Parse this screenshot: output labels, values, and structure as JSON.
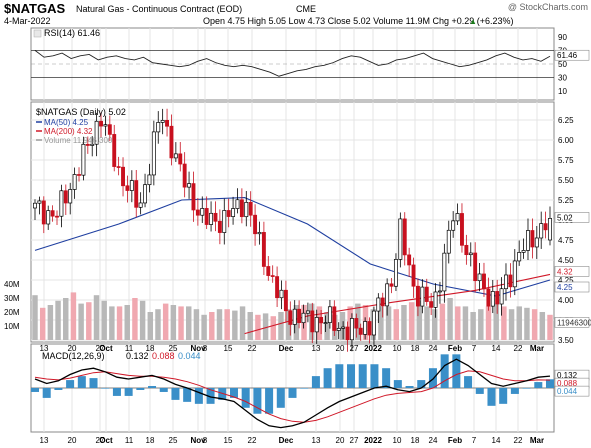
{
  "header": {
    "symbol": "$NATGAS",
    "name": "Natural Gas - Continuous Contract (EOD)",
    "exchange": "CME",
    "watermark": "@ StockCharts.com",
    "date": "4-Mar-2022",
    "quote": "Open 4.75  High 5.05  Low 4.73  Close 5.02  Volume 11.9M  Chg +0.29 (+6.23%)",
    "quote_arrow": "▲"
  },
  "rsi": {
    "label": "RSI(14) 61.46",
    "value_tag": "61.46",
    "levels": [
      70,
      30
    ],
    "ticks": [
      {
        "label": "90",
        "value": 90
      },
      {
        "label": "70",
        "value": 70
      },
      {
        "label": "50",
        "value": 50
      },
      {
        "label": "30",
        "value": 30
      },
      {
        "label": "10",
        "value": 10
      }
    ]
  },
  "price": {
    "title": "$NATGAS (Daily) 5.02",
    "legend": [
      {
        "label": "MA(50) 4.25",
        "color": "#1f3fa0"
      },
      {
        "label": "MA(200) 4.32",
        "color": "#d01828"
      },
      {
        "label": "Volume 11,946,300",
        "color": "#999999"
      }
    ],
    "ticks": [
      "6.25",
      "6.00",
      "5.75",
      "5.50",
      "5.25",
      "5.00",
      "4.75",
      "4.50",
      "4.25",
      "4.00",
      "3.75",
      "3.50"
    ],
    "tags": {
      "close": "5.02",
      "ma200": "4.32",
      "ma50": "4.25",
      "volume": "11946300"
    },
    "volume_ticks": [
      "40M",
      "30M",
      "20M",
      "10M"
    ]
  },
  "macd": {
    "label_prefix": "MACD(12,26,9)",
    "macd_value": "0.132",
    "signal_value": "0.088",
    "hist_value": "0.044",
    "tags": [
      "0.132",
      "0.088",
      "0.044"
    ],
    "colors": {
      "macd": "#000000",
      "signal": "#d01828",
      "hist": "#3a8fc8"
    }
  },
  "x_axis": [
    {
      "label": "13",
      "bold": false
    },
    {
      "label": "20",
      "bold": false
    },
    {
      "label": "27",
      "bold": false
    },
    {
      "label": "Oct",
      "bold": true
    },
    {
      "label": "11",
      "bold": false
    },
    {
      "label": "18",
      "bold": false
    },
    {
      "label": "25",
      "bold": false
    },
    {
      "label": "Nov",
      "bold": true
    },
    {
      "label": "8",
      "bold": false
    },
    {
      "label": "15",
      "bold": false
    },
    {
      "label": "22",
      "bold": false
    },
    {
      "label": "Dec",
      "bold": true
    },
    {
      "label": "13",
      "bold": false
    },
    {
      "label": "20",
      "bold": false
    },
    {
      "label": "27",
      "bold": false
    },
    {
      "label": "2022",
      "bold": true
    },
    {
      "label": "10",
      "bold": false
    },
    {
      "label": "18",
      "bold": false
    },
    {
      "label": "24",
      "bold": false
    },
    {
      "label": "Feb",
      "bold": true
    },
    {
      "label": "7",
      "bold": false
    },
    {
      "label": "14",
      "bold": false
    },
    {
      "label": "22",
      "bold": false
    },
    {
      "label": "Mar",
      "bold": true
    }
  ],
  "chart_data": {
    "type": "candlestick",
    "title": "$NATGAS (Daily) 5.02",
    "x_range": [
      "2021-09-13",
      "2022-03-04"
    ],
    "ylim": [
      3.5,
      6.35
    ],
    "grid": true,
    "legend_placement": "top-left",
    "key_points": [
      {
        "date": "2021-09-13",
        "close": 5.15
      },
      {
        "date": "2021-09-20",
        "close": 5.05
      },
      {
        "date": "2021-09-27",
        "close": 5.6
      },
      {
        "date": "2021-10-05",
        "close": 6.3
      },
      {
        "date": "2021-10-11",
        "close": 5.6
      },
      {
        "date": "2021-10-18",
        "close": 5.15
      },
      {
        "date": "2021-10-25",
        "close": 6.35
      },
      {
        "date": "2021-11-01",
        "close": 5.55
      },
      {
        "date": "2021-11-08",
        "close": 5.0
      },
      {
        "date": "2021-11-15",
        "close": 5.0
      },
      {
        "date": "2021-11-22",
        "close": 5.25
      },
      {
        "date": "2021-12-01",
        "close": 4.25
      },
      {
        "date": "2021-12-06",
        "close": 3.85
      },
      {
        "date": "2021-12-13",
        "close": 3.75
      },
      {
        "date": "2021-12-20",
        "close": 3.75
      },
      {
        "date": "2021-12-27",
        "close": 3.6
      },
      {
        "date": "2022-01-03",
        "close": 3.7
      },
      {
        "date": "2022-01-10",
        "close": 4.25
      },
      {
        "date": "2022-01-13",
        "close": 4.85
      },
      {
        "date": "2022-01-18",
        "close": 4.1
      },
      {
        "date": "2022-01-24",
        "close": 3.9
      },
      {
        "date": "2022-01-31",
        "close": 5.1
      },
      {
        "date": "2022-02-07",
        "close": 4.3
      },
      {
        "date": "2022-02-14",
        "close": 3.95
      },
      {
        "date": "2022-02-22",
        "close": 4.6
      },
      {
        "date": "2022-03-04",
        "close": 5.02
      }
    ],
    "ma50": [
      {
        "date": "2021-09-13",
        "value": 4.62
      },
      {
        "date": "2021-10-11",
        "value": 4.95
      },
      {
        "date": "2021-11-01",
        "value": 5.25
      },
      {
        "date": "2021-11-22",
        "value": 5.28
      },
      {
        "date": "2021-12-13",
        "value": 4.95
      },
      {
        "date": "2022-01-03",
        "value": 4.45
      },
      {
        "date": "2022-01-24",
        "value": 4.2
      },
      {
        "date": "2022-02-14",
        "value": 4.05
      },
      {
        "date": "2022-03-04",
        "value": 4.25
      }
    ],
    "ma200": [
      {
        "date": "2021-11-22",
        "value": 3.58
      },
      {
        "date": "2021-12-13",
        "value": 3.8
      },
      {
        "date": "2022-01-10",
        "value": 3.97
      },
      {
        "date": "2022-02-07",
        "value": 4.12
      },
      {
        "date": "2022-03-04",
        "value": 4.32
      }
    ],
    "volume_M": [
      32,
      23,
      25,
      28,
      30,
      34,
      26,
      27,
      32,
      28,
      24,
      24,
      25,
      30,
      28,
      20,
      22,
      26,
      25,
      24,
      24,
      22,
      18,
      20,
      22,
      22,
      21,
      24,
      20,
      18,
      19,
      17,
      20,
      22,
      25,
      25,
      26,
      24,
      20,
      18,
      20,
      24,
      26,
      25,
      22,
      24,
      24,
      22,
      25,
      27,
      28,
      24,
      22,
      26,
      30,
      24,
      24,
      20,
      22,
      24,
      26,
      24,
      22,
      24,
      23,
      22,
      20,
      18
    ],
    "rsi_values": [
      70,
      60,
      62,
      66,
      58,
      62,
      64,
      56,
      60,
      62,
      58,
      56,
      60,
      52,
      50,
      48,
      46,
      48,
      54,
      58,
      52,
      48,
      46,
      48,
      46,
      42,
      38,
      32,
      36,
      40,
      42,
      46,
      48,
      52,
      58,
      62,
      60,
      54,
      48,
      50,
      56,
      58,
      62,
      66,
      58,
      54,
      50,
      46,
      48,
      52,
      56,
      62,
      66,
      60,
      56,
      58,
      54,
      61.46
    ],
    "macd_values": [
      0.1,
      0.05,
      0.08,
      0.15,
      0.2,
      0.22,
      0.18,
      0.12,
      0.1,
      0.12,
      0.14,
      0.1,
      0.04,
      0.0,
      -0.05,
      -0.1,
      -0.12,
      -0.15,
      -0.25,
      -0.35,
      -0.42,
      -0.44,
      -0.42,
      -0.38,
      -0.3,
      -0.22,
      -0.15,
      -0.1,
      -0.05,
      0.0,
      0.02,
      -0.02,
      -0.04,
      0.0,
      0.1,
      0.25,
      0.32,
      0.25,
      0.15,
      0.05,
      0.02,
      0.05,
      0.08,
      0.12,
      0.132
    ],
    "signal_values": [
      0.12,
      0.1,
      0.09,
      0.11,
      0.14,
      0.17,
      0.18,
      0.16,
      0.14,
      0.13,
      0.13,
      0.12,
      0.1,
      0.07,
      0.03,
      -0.02,
      -0.06,
      -0.1,
      -0.15,
      -0.22,
      -0.29,
      -0.34,
      -0.37,
      -0.38,
      -0.36,
      -0.32,
      -0.27,
      -0.22,
      -0.17,
      -0.12,
      -0.08,
      -0.06,
      -0.05,
      -0.04,
      0.0,
      0.08,
      0.15,
      0.19,
      0.18,
      0.14,
      0.1,
      0.08,
      0.08,
      0.09,
      0.088
    ]
  }
}
